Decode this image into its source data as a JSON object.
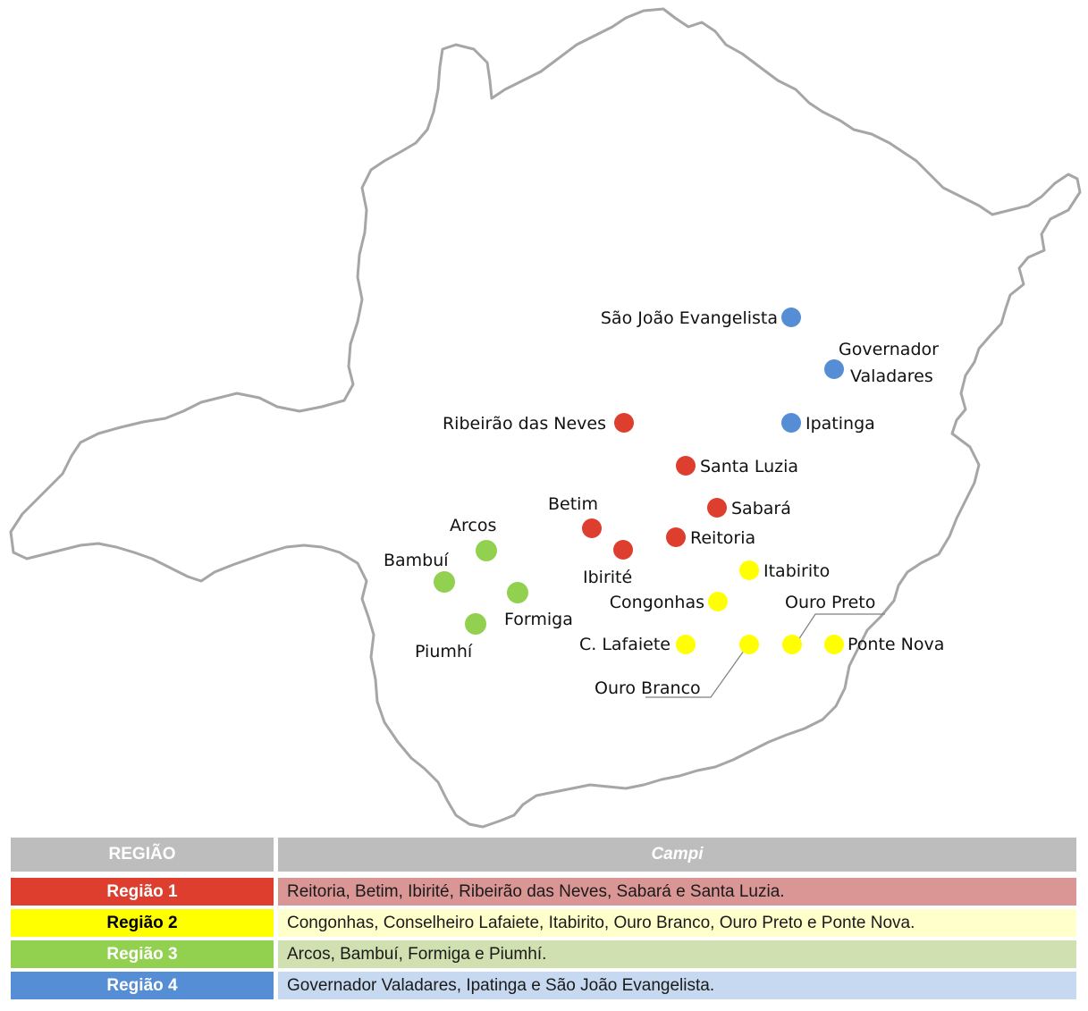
{
  "colors": {
    "region1": "#dd3e2e",
    "region2": "#ffff00",
    "region3": "#92d050",
    "region4": "#558ed5",
    "region1_light": "#da9694",
    "region2_light": "#ffffcc",
    "region3_light": "#d0e0b0",
    "region4_light": "#c6d9f1",
    "border": "#a6a6a6",
    "header": "#bdbdbd"
  },
  "cities": [
    {
      "name": "São João Evangelista",
      "region": 4
    },
    {
      "name": "Governador",
      "region": 4
    },
    {
      "name": "Valadares",
      "region": 0
    },
    {
      "name": "Ipatinga",
      "region": 4
    },
    {
      "name": "Ribeirão das Neves",
      "region": 1
    },
    {
      "name": "Santa Luzia",
      "region": 1
    },
    {
      "name": "Sabará",
      "region": 1
    },
    {
      "name": "Betim",
      "region": 1
    },
    {
      "name": "Ibirité",
      "region": 1
    },
    {
      "name": "Reitoria",
      "region": 1
    },
    {
      "name": "Arcos",
      "region": 3
    },
    {
      "name": "Bambuí",
      "region": 3
    },
    {
      "name": "Formiga",
      "region": 3
    },
    {
      "name": "Piumhí",
      "region": 3
    },
    {
      "name": "Itabirito",
      "region": 2
    },
    {
      "name": "Congonhas",
      "region": 2
    },
    {
      "name": "Ouro Preto",
      "region": 2
    },
    {
      "name": "C. Lafaiete",
      "region": 2
    },
    {
      "name": "Ponte Nova",
      "region": 2
    },
    {
      "name": "Ouro Branco",
      "region": 2
    }
  ],
  "legend": {
    "header": {
      "left": "REGIÃO",
      "right": "Campi"
    },
    "rows": [
      {
        "label": "Região 1",
        "campi": "Reitoria, Betim, Ibirité, Ribeirão das Neves, Sabará e Santa Luzia."
      },
      {
        "label": "Região 2",
        "campi": "Congonhas, Conselheiro Lafaiete, Itabirito, Ouro Branco, Ouro Preto e Ponte Nova."
      },
      {
        "label": "Região 3",
        "campi": "Arcos, Bambuí, Formiga e Piumhí."
      },
      {
        "label": "Região 4",
        "campi": "Governador Valadares, Ipatinga e São João Evangelista."
      }
    ]
  }
}
